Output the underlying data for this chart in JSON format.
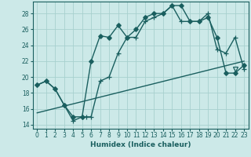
{
  "title": "",
  "xlabel": "Humidex (Indice chaleur)",
  "xlim": [
    -0.5,
    23.5
  ],
  "ylim": [
    13.5,
    29.5
  ],
  "yticks": [
    14,
    16,
    18,
    20,
    22,
    24,
    26,
    28
  ],
  "xticks": [
    0,
    1,
    2,
    3,
    4,
    5,
    6,
    7,
    8,
    9,
    10,
    11,
    12,
    13,
    14,
    15,
    16,
    17,
    18,
    19,
    20,
    21,
    22,
    23
  ],
  "bg_color": "#cce9e8",
  "grid_color": "#a8d0ce",
  "line_color": "#1a5f5f",
  "line1_x": [
    0,
    1,
    2,
    3,
    4,
    5,
    6,
    7,
    8,
    9,
    10,
    11,
    12,
    13,
    14,
    15,
    16,
    17,
    18,
    19,
    20,
    21,
    22,
    23
  ],
  "line1_y": [
    19.0,
    19.5,
    18.5,
    16.5,
    15.0,
    15.0,
    22.0,
    25.2,
    25.0,
    26.5,
    25.0,
    26.0,
    27.5,
    28.0,
    28.0,
    29.0,
    29.0,
    27.0,
    27.0,
    27.5,
    25.0,
    20.5,
    20.5,
    21.5
  ],
  "line2_x": [
    0,
    1,
    2,
    3,
    4,
    5,
    5.5,
    6,
    7,
    8,
    9,
    10,
    11,
    12,
    13,
    14,
    15,
    16,
    17,
    18,
    19,
    20,
    21,
    22,
    23
  ],
  "line2_y": [
    19.0,
    19.5,
    18.5,
    16.5,
    14.5,
    15.0,
    15.0,
    15.0,
    19.5,
    20.0,
    23.0,
    25.0,
    25.0,
    27.0,
    27.5,
    28.0,
    29.0,
    27.0,
    27.0,
    27.0,
    28.0,
    23.5,
    23.0,
    25.0,
    21.0
  ],
  "line3_x": [
    0,
    23
  ],
  "line3_y": [
    15.5,
    22.0
  ]
}
